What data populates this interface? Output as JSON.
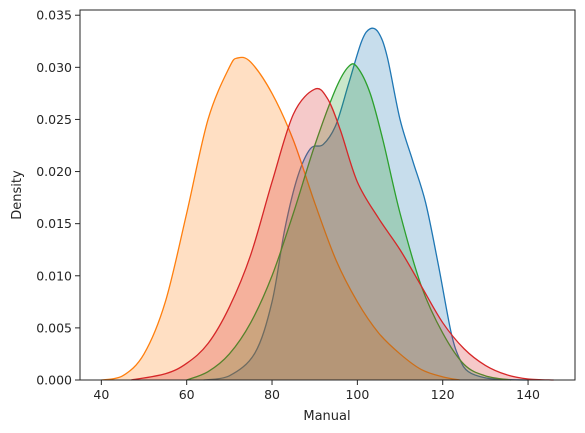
{
  "chart_data": {
    "type": "area",
    "title": "",
    "xlabel": "Manual",
    "ylabel": "Density",
    "xlim": [
      35,
      151
    ],
    "ylim": [
      0,
      0.0355
    ],
    "xticks": [
      40,
      60,
      80,
      100,
      120,
      140
    ],
    "yticks": [
      0.0,
      0.005,
      0.01,
      0.015,
      0.02,
      0.025,
      0.03,
      0.035
    ],
    "ytick_labels": [
      "0.000",
      "0.005",
      "0.010",
      "0.015",
      "0.020",
      "0.025",
      "0.030",
      "0.035"
    ],
    "grid": false,
    "legend": "none",
    "series": [
      {
        "color": "#1f77b4",
        "x": [
          64,
          70,
          76,
          80,
          83,
          86,
          89,
          92,
          95,
          98,
          101,
          103,
          105,
          107,
          110,
          113,
          116,
          119,
          122,
          124,
          126,
          130,
          135,
          140
        ],
        "y": [
          0.0,
          0.0004,
          0.0026,
          0.0075,
          0.0145,
          0.0195,
          0.0222,
          0.0226,
          0.0245,
          0.0285,
          0.0325,
          0.0337,
          0.0333,
          0.031,
          0.025,
          0.021,
          0.017,
          0.011,
          0.0045,
          0.002,
          0.0008,
          0.0002,
          5e-05,
          0.0
        ]
      },
      {
        "color": "#ff7f0e",
        "x": [
          40,
          45,
          50,
          55,
          60,
          65,
          70,
          72,
          75,
          80,
          85,
          90,
          95,
          100,
          105,
          110,
          115,
          120,
          124
        ],
        "y": [
          0.0,
          0.0004,
          0.0025,
          0.0075,
          0.016,
          0.025,
          0.03,
          0.0309,
          0.0305,
          0.0275,
          0.023,
          0.017,
          0.0115,
          0.0075,
          0.0045,
          0.0025,
          0.001,
          0.0003,
          0.0
        ]
      },
      {
        "color": "#2ca02c",
        "x": [
          60,
          65,
          70,
          75,
          80,
          85,
          90,
          95,
          98,
          100,
          103,
          106,
          110,
          115,
          120,
          125,
          130,
          136
        ],
        "y": [
          0.0,
          0.0008,
          0.0025,
          0.0055,
          0.01,
          0.016,
          0.0225,
          0.028,
          0.0301,
          0.03,
          0.0275,
          0.023,
          0.016,
          0.009,
          0.0045,
          0.0015,
          0.0004,
          0.0
        ]
      },
      {
        "color": "#d62728",
        "x": [
          47,
          55,
          60,
          65,
          70,
          75,
          80,
          85,
          90,
          93,
          96,
          100,
          105,
          110,
          115,
          120,
          125,
          130,
          135,
          140,
          146
        ],
        "y": [
          0.0,
          0.0006,
          0.0016,
          0.0035,
          0.007,
          0.012,
          0.019,
          0.0255,
          0.0279,
          0.027,
          0.024,
          0.019,
          0.0155,
          0.0125,
          0.009,
          0.0055,
          0.003,
          0.0014,
          0.0005,
          0.0001,
          0.0
        ]
      }
    ]
  }
}
